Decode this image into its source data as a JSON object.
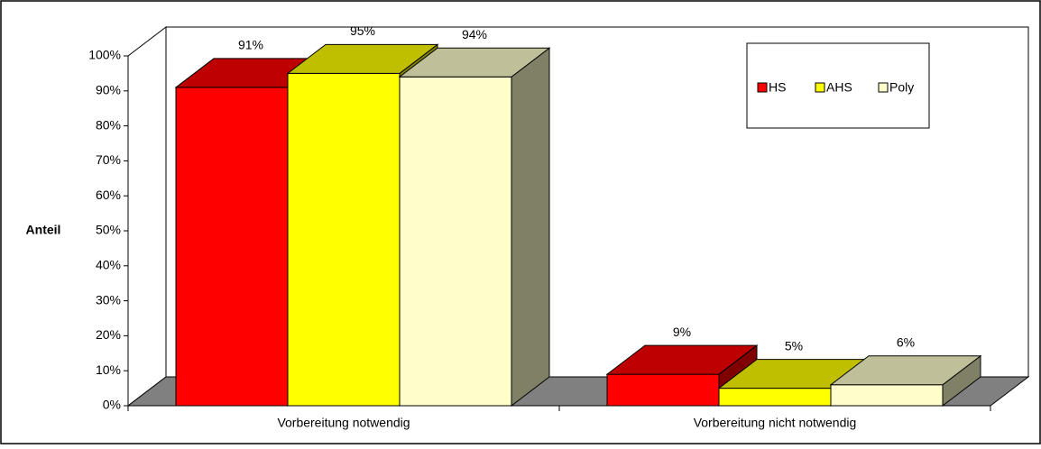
{
  "chart_data": {
    "type": "bar3d",
    "y_label": "Anteil",
    "categories": [
      "Vorbereitung notwendig",
      "Vorbereitung nicht notwendig"
    ],
    "series": [
      {
        "name": "HS",
        "color": "#ff0000",
        "values": [
          91,
          9
        ],
        "value_labels": [
          "91%",
          "9%"
        ]
      },
      {
        "name": "AHS",
        "color": "#ffff00",
        "values": [
          95,
          5
        ],
        "value_labels": [
          "95%",
          "5%"
        ]
      },
      {
        "name": "Poly",
        "color": "#ffffcc",
        "values": [
          94,
          6
        ],
        "value_labels": [
          "94%",
          "6%"
        ]
      }
    ],
    "ylim": [
      0,
      100
    ],
    "yticks": [
      {
        "value": 0,
        "label": "0%"
      },
      {
        "value": 10,
        "label": "10%"
      },
      {
        "value": 20,
        "label": "20%"
      },
      {
        "value": 30,
        "label": "30%"
      },
      {
        "value": 40,
        "label": "40%"
      },
      {
        "value": 50,
        "label": "50%"
      },
      {
        "value": 60,
        "label": "60%"
      },
      {
        "value": 70,
        "label": "70%"
      },
      {
        "value": 80,
        "label": "80%"
      },
      {
        "value": 90,
        "label": "90%"
      },
      {
        "value": 100,
        "label": "100%"
      }
    ],
    "grid": false,
    "legend": "top-right"
  }
}
